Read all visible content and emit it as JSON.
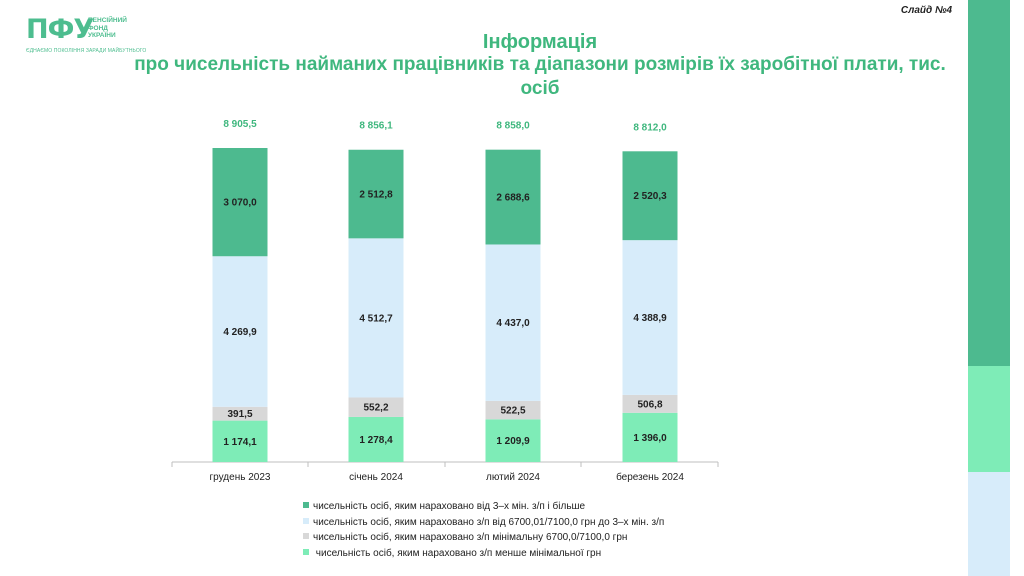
{
  "header": {
    "logo_mark": "ПФУ",
    "logo_lines": [
      "ПЕНСІЙНИЙ",
      "ФОНД",
      "УКРАЇНИ"
    ],
    "logo_tagline": "ЄДНАЄМО ПОКОЛІННЯ ЗАРАДИ МАЙБУТНЬОГО",
    "slide_number": "Слайд №4",
    "title_line1": "Інформація",
    "title_line2": "про чисельність найманих працівників та діапазони розмірів їх заробітної плати, тис. осіб"
  },
  "colors": {
    "title": "#3fb77e",
    "series": [
      "#4dba8f",
      "#d7ecfa",
      "#d8d8d8",
      "#7eecb7"
    ],
    "total_label": "#3fb77e",
    "sidebar": [
      "#4dba8f",
      "#7eecb7",
      "#d7ecfa"
    ]
  },
  "chart_data": {
    "type": "bar",
    "stacked": true,
    "categories": [
      "грудень 2023",
      "січень 2024",
      "лютий 2024",
      "березень 2024"
    ],
    "totals": [
      "8 905,5",
      "8 856,1",
      "8 858,0",
      "8 812,0"
    ],
    "series": [
      {
        "name": "чисельність осіб, яким нараховано від 3–х мін. з/п і більше",
        "values": [
          3070.0,
          2512.8,
          2688.6,
          2520.3
        ],
        "labels": [
          "3 070,0",
          "2 512,8",
          "2 688,6",
          "2 520,3"
        ]
      },
      {
        "name": "чисельність осіб, яким нараховано з/п від 6700,01/7100,0 грн до 3–х мін. з/п",
        "values": [
          4269.9,
          4512.7,
          4437.0,
          4388.9
        ],
        "labels": [
          "4 269,9",
          "4 512,7",
          "4 437,0",
          "4 388,9"
        ]
      },
      {
        "name": "чисельність осіб, яким нараховано з/п  мінімальну 6700,0/7100,0 грн",
        "values": [
          391.5,
          552.2,
          522.5,
          506.8
        ],
        "labels": [
          "391,5",
          "552,2",
          "522,5",
          "506,8"
        ]
      },
      {
        "name": " чисельність осіб, яким нараховано з/п менше мінімальної грн",
        "values": [
          1174.1,
          1278.4,
          1209.9,
          1396.0
        ],
        "labels": [
          "1 174,1",
          "1 278,4",
          "1 209,9",
          "1 396,0"
        ]
      }
    ],
    "legend_position": "bottom",
    "grid": false
  }
}
